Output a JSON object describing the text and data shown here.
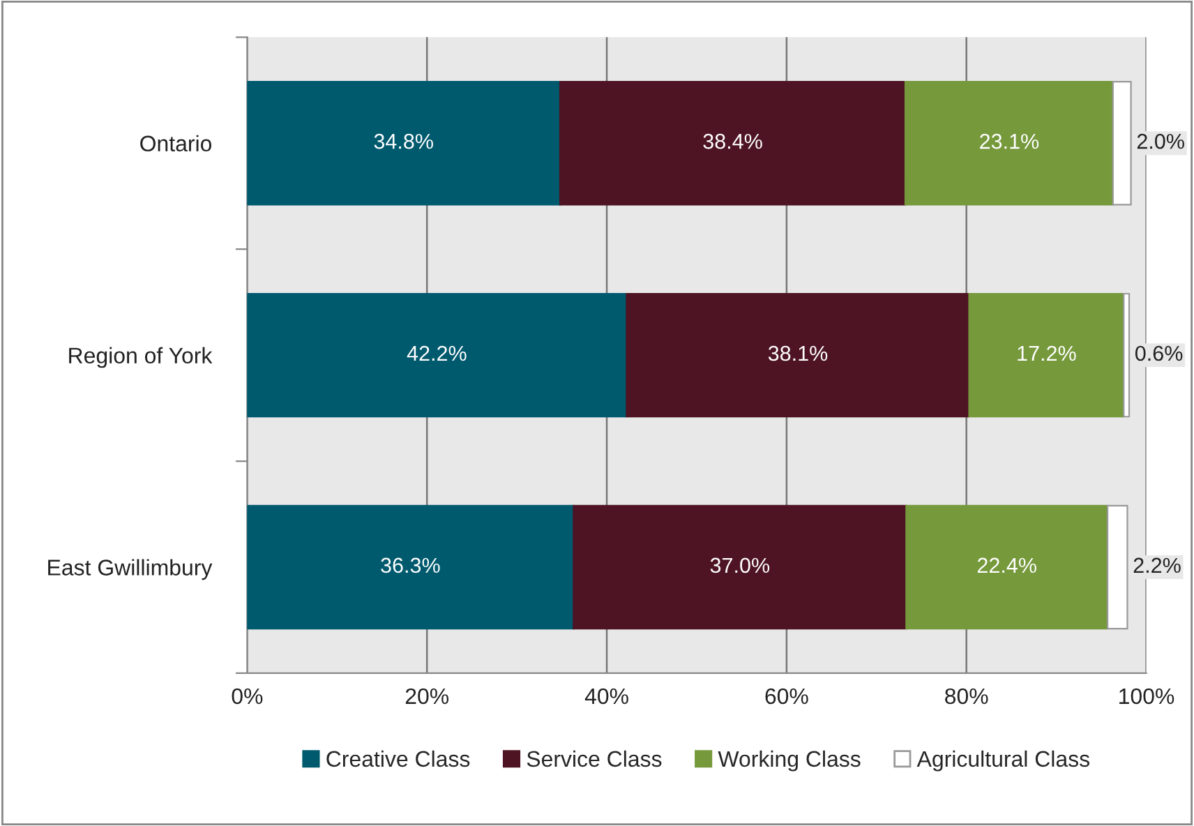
{
  "chart_data": {
    "type": "bar",
    "orientation": "horizontal",
    "stacked": true,
    "categories": [
      "Ontario",
      "Region of York",
      "East Gwillimbury"
    ],
    "series": [
      {
        "name": "Creative Class",
        "color": "#005a6e",
        "values": [
          34.8,
          42.2,
          36.3
        ],
        "value_labels": [
          "34.8%",
          "42.2%",
          "36.3%"
        ]
      },
      {
        "name": "Service Class",
        "color": "#4e1424",
        "values": [
          38.4,
          38.1,
          37.0
        ],
        "value_labels": [
          "38.4%",
          "38.1%",
          "37.0%"
        ]
      },
      {
        "name": "Working Class",
        "color": "#76993c",
        "values": [
          23.1,
          17.2,
          22.4
        ],
        "value_labels": [
          "23.1%",
          "17.2%",
          "22.4%"
        ]
      },
      {
        "name": "Agricultural Class",
        "color": "#ffffff",
        "values": [
          2.0,
          0.6,
          2.2
        ],
        "value_labels": [
          "2.0%",
          "0.6%",
          "2.2%"
        ]
      }
    ],
    "xlim": [
      0,
      100
    ],
    "xticks": [
      {
        "value": 0,
        "label": "0%"
      },
      {
        "value": 20,
        "label": "20%"
      },
      {
        "value": 40,
        "label": "40%"
      },
      {
        "value": 60,
        "label": "60%"
      },
      {
        "value": 80,
        "label": "80%"
      },
      {
        "value": 100,
        "label": "100%"
      }
    ],
    "grid": "x",
    "legend": "bottom"
  }
}
